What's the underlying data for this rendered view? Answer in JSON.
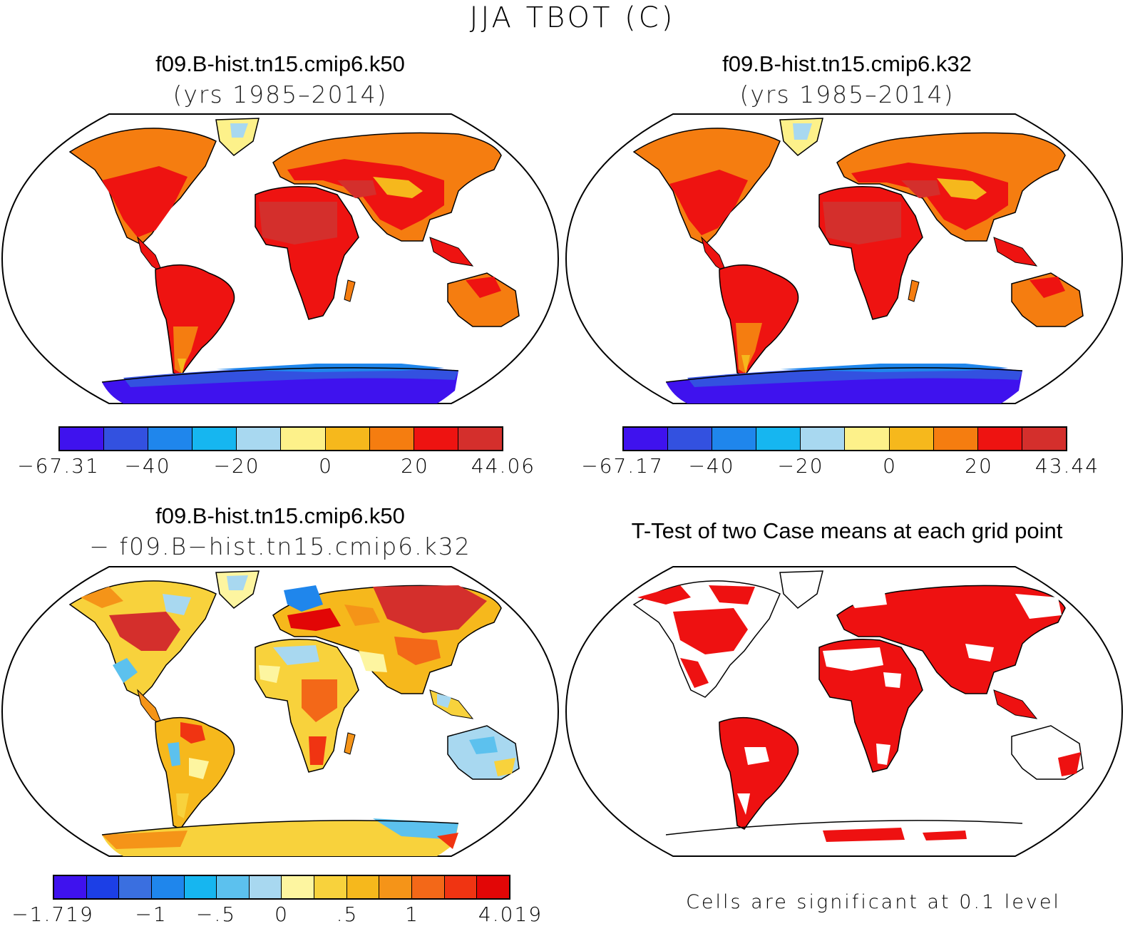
{
  "main_title": "JJA TBOT (C)",
  "panels": [
    {
      "id": "k50",
      "title": "f09.B-hist.tn15.cmip6.k50",
      "subtitle": "(yrs 1985–2014)",
      "colors": [
        "#3f12ee",
        "#3351e0",
        "#1f86ec",
        "#16b6f0",
        "#a8d8f0",
        "#fdf18a",
        "#f6b81c",
        "#f57d10",
        "#ee1311",
        "#d42f2c"
      ],
      "ticks": [
        "−67.31",
        "−40",
        "−20",
        "0",
        "20",
        "44.06"
      ]
    },
    {
      "id": "k32",
      "title": "f09.B-hist.tn15.cmip6.k32",
      "subtitle": "(yrs 1985–2014)",
      "colors": [
        "#3f12ee",
        "#3351e0",
        "#1f86ec",
        "#16b6f0",
        "#a8d8f0",
        "#fdf18a",
        "#f6b81c",
        "#f57d10",
        "#ee1311",
        "#d42f2c"
      ],
      "ticks": [
        "−67.17",
        "−40",
        "−20",
        "0",
        "20",
        "43.44"
      ]
    },
    {
      "id": "diff",
      "title": "f09.B-hist.tn15.cmip6.k50",
      "subtitle": "− f09.B−hist.tn15.cmip6.k32",
      "colors": [
        "#3f12ee",
        "#1c3fe6",
        "#3a6fe0",
        "#1f86ec",
        "#16b6f0",
        "#5cc1ee",
        "#a8d8f0",
        "#fdf5a0",
        "#f8d23c",
        "#f6b81c",
        "#f59418",
        "#f36818",
        "#f03412",
        "#e20606",
        "#d42f2c"
      ],
      "ticks": [
        "−1.719",
        "−1",
        "−.5",
        "0",
        ".5",
        "1",
        "4.019"
      ]
    },
    {
      "id": "ttest",
      "title": "T-Test of two Case means at each grid point",
      "note": "Cells are significant at 0.1 level",
      "sig_color": "#ee1111"
    }
  ]
}
